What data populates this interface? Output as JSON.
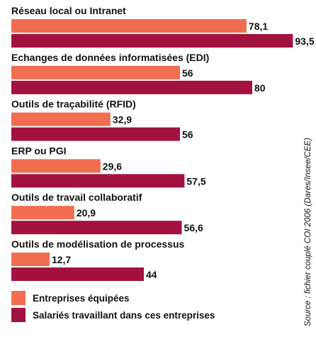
{
  "chart_data": {
    "type": "bar",
    "orientation": "horizontal",
    "categories": [
      "Réseau local ou Intranet",
      "Echanges de données informatisées (EDI)",
      "Outils de traçabilité (RFID)",
      "ERP ou PGI",
      "Outils de travail collaboratif",
      "Outils de modélisation de processus"
    ],
    "series": [
      {
        "name": "Entreprises équipées",
        "color": "#f26c50",
        "values": [
          78.1,
          56,
          32.9,
          29.6,
          20.9,
          12.7
        ],
        "labels": [
          "78,1",
          "56",
          "32,9",
          "29,6",
          "20,9",
          "12,7"
        ]
      },
      {
        "name": "Salariés travaillant dans ces entreprises",
        "color": "#a3113e",
        "values": [
          93.5,
          80,
          56,
          57.5,
          56.6,
          44
        ],
        "labels": [
          "93,5",
          "80",
          "56",
          "57,5",
          "56,6",
          "44"
        ]
      }
    ],
    "xlim": [
      0,
      100
    ],
    "grid": false,
    "legend_position": "bottom-left",
    "title": "",
    "xlabel": "",
    "ylabel": ""
  },
  "source": "Source : fichier couplé COI 2006 (Dares/Insee/CEE)"
}
